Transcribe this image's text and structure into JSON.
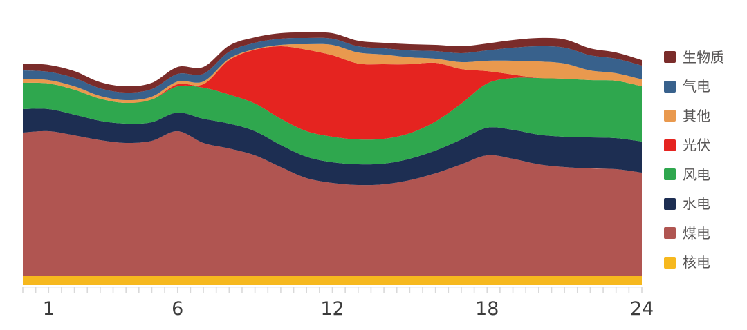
{
  "chart_data": {
    "type": "area",
    "stacked": true,
    "title": "",
    "xlabel": "",
    "ylabel": "",
    "y_axis": "none shown (values are relative units estimated from pixel heights)",
    "x_range": [
      0,
      24
    ],
    "x_tick_labels": [
      "1",
      "6",
      "12",
      "18",
      "24"
    ],
    "x_tick_hours": [
      1,
      6,
      12,
      18,
      24
    ],
    "minor_tick_step_hours": 0.5,
    "legend_position": "right",
    "x": [
      0,
      1,
      2,
      3,
      4,
      5,
      6,
      7,
      8,
      9,
      10,
      11,
      12,
      13,
      14,
      15,
      16,
      17,
      18,
      19,
      20,
      21,
      22,
      23,
      24
    ],
    "series": [
      {
        "key": "nuclear",
        "name": "核电",
        "color": "#f6b81e",
        "values": [
          13,
          13,
          13,
          13,
          13,
          13,
          13,
          13,
          13,
          13,
          13,
          13,
          13,
          13,
          13,
          13,
          13,
          13,
          13,
          13,
          13,
          13,
          13,
          13,
          13
        ]
      },
      {
        "key": "coal",
        "name": "煤电",
        "color": "#b05551",
        "values": [
          208,
          210,
          204,
          197,
          193,
          196,
          210,
          193,
          185,
          175,
          158,
          142,
          135,
          132,
          133,
          139,
          149,
          162,
          175,
          170,
          162,
          158,
          156,
          155,
          150
        ]
      },
      {
        "key": "hydro",
        "name": "水电",
        "color": "#1d2e52",
        "values": [
          34,
          32,
          30,
          28,
          28,
          27,
          27,
          35,
          36,
          35,
          32,
          31,
          30,
          30,
          30,
          31,
          33,
          36,
          40,
          42,
          43,
          44,
          45,
          45,
          45
        ]
      },
      {
        "key": "wind",
        "name": "风电",
        "color": "#2fa74e",
        "values": [
          38,
          37,
          36,
          32,
          30,
          33,
          38,
          45,
          42,
          40,
          38,
          37,
          37,
          36,
          36,
          37,
          42,
          52,
          64,
          75,
          82,
          84,
          83,
          83,
          80
        ]
      },
      {
        "key": "solar",
        "name": "光伏",
        "color": "#e52420",
        "values": [
          0,
          0,
          0,
          0,
          0,
          0,
          3,
          5,
          50,
          78,
          105,
          118,
          118,
          110,
          108,
          100,
          85,
          50,
          18,
          5,
          0,
          0,
          0,
          0,
          0
        ]
      },
      {
        "key": "other",
        "name": "其他",
        "color": "#e9994e",
        "values": [
          6,
          5,
          5,
          4,
          4,
          4,
          4,
          4,
          2,
          1,
          2,
          8,
          15,
          16,
          14,
          10,
          6,
          10,
          15,
          20,
          24,
          22,
          14,
          11,
          10
        ]
      },
      {
        "key": "gas",
        "name": "气电",
        "color": "#38618c",
        "values": [
          12,
          12,
          12,
          11,
          11,
          11,
          11,
          11,
          10,
          9,
          9,
          9,
          9,
          9,
          9,
          10,
          11,
          13,
          15,
          19,
          22,
          23,
          22,
          21,
          20
        ]
      },
      {
        "key": "biomass",
        "name": "生物质",
        "color": "#7a2c2a",
        "values": [
          10,
          10,
          10,
          9,
          9,
          9,
          10,
          10,
          9,
          8,
          8,
          8,
          8,
          8,
          8,
          9,
          9,
          10,
          10,
          11,
          12,
          12,
          10,
          9,
          8
        ]
      }
    ],
    "legend": [
      {
        "key": "biomass",
        "label": "生物质",
        "color": "#7a2c2a"
      },
      {
        "key": "gas",
        "label": "气电",
        "color": "#38618c"
      },
      {
        "key": "other",
        "label": "其他",
        "color": "#e9994e"
      },
      {
        "key": "solar",
        "label": "光伏",
        "color": "#e52420"
      },
      {
        "key": "wind",
        "label": "风电",
        "color": "#2fa74e"
      },
      {
        "key": "hydro",
        "label": "水电",
        "color": "#1d2e52"
      },
      {
        "key": "coal",
        "label": "煤电",
        "color": "#b05551"
      },
      {
        "key": "nuclear",
        "label": "核电",
        "color": "#f6b81e"
      }
    ],
    "axis_colors": {
      "tick": "#d9d9d9",
      "baseline": "#e4e4e4",
      "label": "#3c3c3c"
    }
  }
}
